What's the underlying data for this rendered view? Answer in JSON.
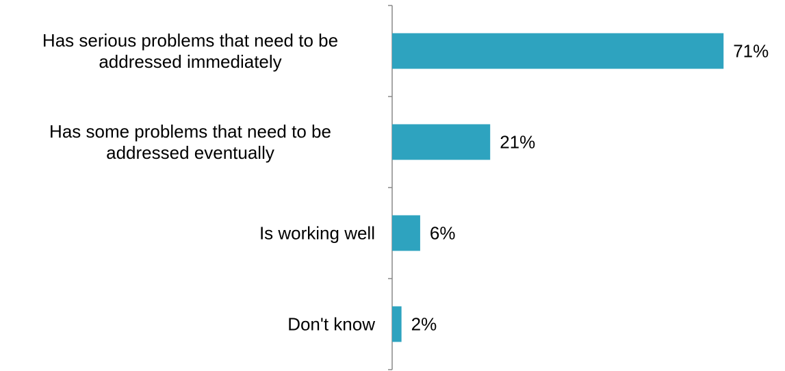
{
  "chart_data": {
    "type": "bar",
    "orientation": "horizontal",
    "categories": [
      "Has serious problems that need to be addressed immediately",
      "Has some problems that need to be addressed eventually",
      "Is working well",
      "Don't know"
    ],
    "values": [
      71,
      21,
      6,
      2
    ],
    "value_labels": [
      "71%",
      "21%",
      "6%",
      "2%"
    ],
    "color": "#2ea3bf"
  }
}
